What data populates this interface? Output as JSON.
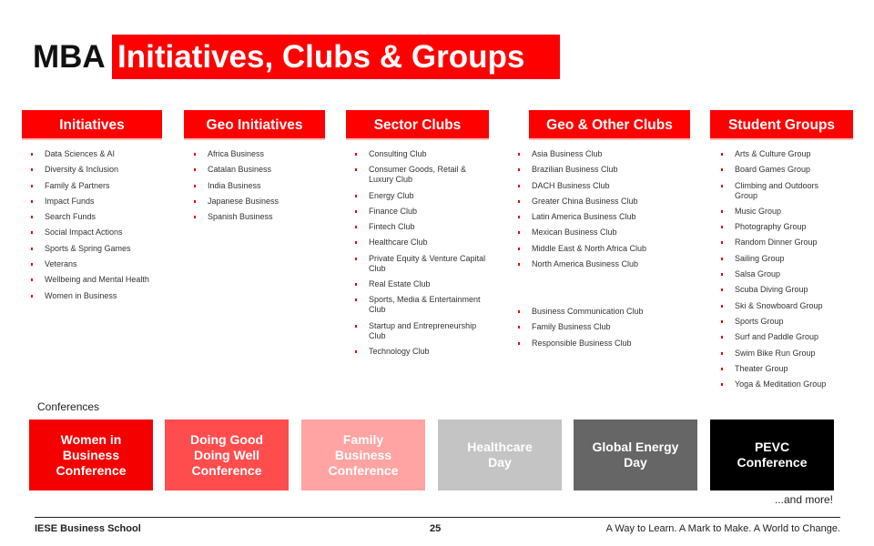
{
  "title": {
    "prefix": "MBA",
    "main": "Initiatives, Clubs & Groups"
  },
  "columns": [
    {
      "header": "Initiatives",
      "items": [
        "Data Sciences & AI",
        "Diversity & Inclusion",
        "Family & Partners",
        "Impact Funds",
        "Search Funds",
        "Social Impact Actions",
        "Sports & Spring Games",
        "Veterans",
        "Wellbeing and Mental Health",
        "Women in Business"
      ]
    },
    {
      "header": "Geo Initiatives",
      "items": [
        "Africa Business",
        "Catalan Business",
        "India Business",
        "Japanese Business",
        "Spanish Business"
      ]
    },
    {
      "header": "Sector Clubs",
      "items": [
        "Consulting Club",
        "Consumer Goods, Retail & Luxury Club",
        "Energy Club",
        "Finance Club",
        "Fintech Club",
        "Healthcare Club",
        "Private Equity & Venture Capital Club",
        "Real Estate Club",
        "Sports, Media & Entertainment Club",
        "Startup and Entrepreneurship Club",
        "Technology Club"
      ]
    },
    {
      "header": "Geo & Other Clubs",
      "items": [
        "Asia Business Club",
        "Brazilian Business Club",
        "DACH Business Club",
        "Greater China Business Club",
        "Latin America Business Club",
        "Mexican Business Club",
        "Middle East & North Africa Club",
        "North America Business Club"
      ],
      "other_items": [
        "Business Communication Club",
        "Family Business Club",
        "Responsible Business Club"
      ]
    },
    {
      "header": "Student Groups",
      "items": [
        "Arts & Culture Group",
        "Board Games Group",
        "Climbing and Outdoors Group",
        "Music Group",
        "Photography Group",
        "Random Dinner Group",
        "Sailing Group",
        "Salsa Group",
        "Scuba Diving Group",
        "Ski & Snowboard Group",
        "Sports Group",
        "Surf and Paddle Group",
        "Swim Bike Run Group",
        "Theater Group",
        "Yoga & Meditation Group"
      ]
    }
  ],
  "conferences": {
    "label": "Conferences",
    "items": [
      {
        "name": "Women in Business Conference",
        "color": "#f50000"
      },
      {
        "name": "Doing Good Doing Well Conference",
        "color": "#ff4d4d"
      },
      {
        "name": "Family Business Conference",
        "color": "#ffa3a3"
      },
      {
        "name": "Healthcare Day",
        "color": "#c4c4c4"
      },
      {
        "name": "Global Energy Day",
        "color": "#666666"
      },
      {
        "name": "PEVC Conference",
        "color": "#000000"
      }
    ],
    "more": "...and more!"
  },
  "footer": {
    "school": "IESE Business School",
    "page": "25",
    "motto": "A Way to Learn. A Mark to Make. A World to Change."
  },
  "colors": {
    "accent": "#ff0000"
  }
}
